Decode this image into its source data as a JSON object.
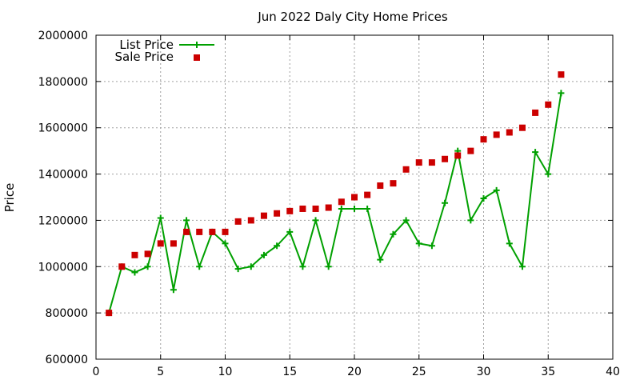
{
  "chart_data": {
    "type": "line",
    "title": "Jun 2022 Daly City Home Prices",
    "xlabel": "",
    "ylabel": "Price",
    "xlim": [
      0,
      40
    ],
    "ylim": [
      600000,
      2000000
    ],
    "xticks": [
      "0",
      "5",
      "10",
      "15",
      "20",
      "25",
      "30",
      "35",
      "40"
    ],
    "yticks": [
      "600000",
      "800000",
      "1000000",
      "1200000",
      "1400000",
      "1600000",
      "1800000",
      "2000000"
    ],
    "grid": true,
    "legend": "top-left",
    "series": [
      {
        "name": "List Price",
        "style": "line+cross",
        "color": "#00a000",
        "x": [
          1,
          2,
          3,
          4,
          5,
          6,
          7,
          8,
          9,
          10,
          11,
          12,
          13,
          14,
          15,
          16,
          17,
          18,
          19,
          20,
          21,
          22,
          23,
          24,
          25,
          26,
          27,
          28,
          29,
          30,
          31,
          32,
          33,
          34,
          35,
          36
        ],
        "y": [
          800000,
          1000000,
          975000,
          1000000,
          1210000,
          900000,
          1200000,
          1000000,
          1150000,
          1100000,
          990000,
          1000000,
          1050000,
          1090000,
          1150000,
          1000000,
          1200000,
          1000000,
          1250000,
          1250000,
          1250000,
          1030000,
          1140000,
          1200000,
          1100000,
          1090000,
          1275000,
          1500000,
          1200000,
          1295000,
          1330000,
          1100000,
          1000000,
          1495000,
          1400000,
          1750000
        ]
      },
      {
        "name": "Sale Price",
        "style": "square-points",
        "color": "#cc0000",
        "x": [
          1,
          2,
          3,
          4,
          5,
          6,
          7,
          8,
          9,
          10,
          11,
          12,
          13,
          14,
          15,
          16,
          17,
          18,
          19,
          20,
          21,
          22,
          23,
          24,
          25,
          26,
          27,
          28,
          29,
          30,
          31,
          32,
          33,
          34,
          35,
          36
        ],
        "y": [
          800000,
          1000000,
          1050000,
          1055000,
          1100000,
          1100000,
          1150000,
          1150000,
          1150000,
          1150000,
          1195000,
          1200000,
          1220000,
          1230000,
          1240000,
          1250000,
          1250000,
          1255000,
          1280000,
          1300000,
          1310000,
          1350000,
          1360000,
          1420000,
          1450000,
          1450000,
          1465000,
          1480000,
          1500000,
          1550000,
          1570000,
          1580000,
          1600000,
          1665000,
          1700000,
          1830000
        ]
      }
    ]
  }
}
